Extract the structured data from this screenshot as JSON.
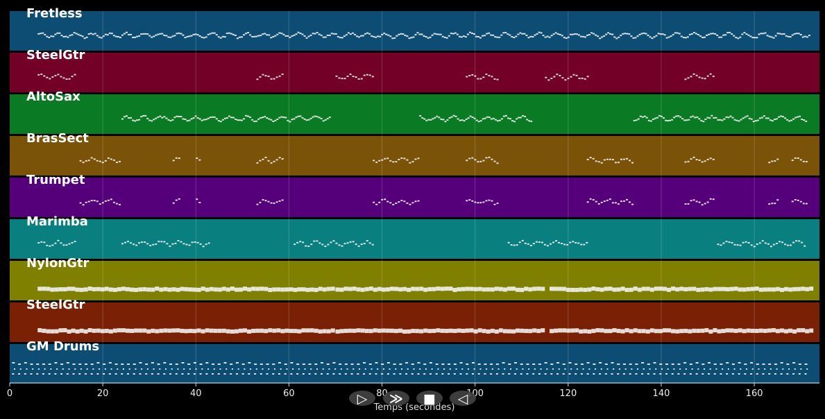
{
  "axis": {
    "label": "Temps (secondes)",
    "ticks": [
      "0",
      "20",
      "40",
      "60",
      "80",
      "100",
      "120",
      "140",
      "160"
    ],
    "max_seconds": 174
  },
  "tracks": [
    {
      "name": "Fretless",
      "color": "#0e4d73",
      "pattern": "bass"
    },
    {
      "name": "SteelGtr",
      "color": "#730026",
      "pattern": "phrases1"
    },
    {
      "name": "AltoSax",
      "color": "#0a7a24",
      "pattern": "sax"
    },
    {
      "name": "BrasSect",
      "color": "#7a5208",
      "pattern": "brass"
    },
    {
      "name": "Trumpet",
      "color": "#55007a",
      "pattern": "brass"
    },
    {
      "name": "Marimba",
      "color": "#0a7f7f",
      "pattern": "marimba"
    },
    {
      "name": "NylonGtr",
      "color": "#7f7f00",
      "pattern": "chords"
    },
    {
      "name": "SteelGtr",
      "color": "#7a2105",
      "pattern": "chords"
    },
    {
      "name": "GM Drums",
      "color": "#0e4d73",
      "pattern": "drums"
    }
  ],
  "controls": [
    {
      "name": "play-icon",
      "glyph": "▷"
    },
    {
      "name": "fast-forward-icon",
      "glyph": "≫"
    },
    {
      "name": "stop-icon",
      "glyph": "■"
    },
    {
      "name": "rewind-icon",
      "glyph": "◁"
    }
  ]
}
